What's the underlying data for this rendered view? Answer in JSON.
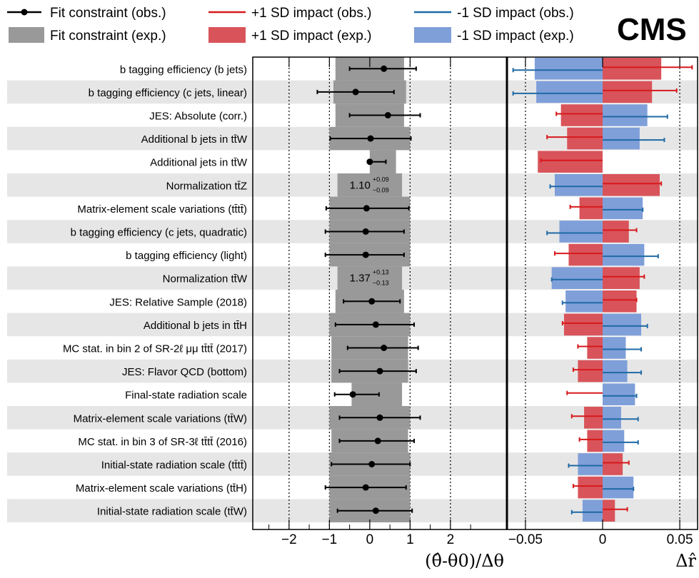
{
  "experiment_label": "CMS",
  "legend": {
    "fit_obs": "Fit constraint (obs.)",
    "fit_exp": "Fit constraint (exp.)",
    "plus_obs": "+1 SD impact (obs.)",
    "plus_exp": "+1 SD impact (exp.)",
    "minus_obs": "-1 SD impact (obs.)",
    "minus_exp": "-1 SD impact (exp.)"
  },
  "colors": {
    "fit_obs": "#000000",
    "fit_exp": "#999999",
    "plus_obs": "#d7191c",
    "plus_exp": "#d8545a",
    "minus_obs": "#1f6aa5",
    "minus_exp": "#7f9fd9",
    "band": "#e6e6e6"
  },
  "chart_data": [
    {
      "type": "scatter",
      "name": "pulls",
      "xlabel": "(θ̂-θ0)/Δθ",
      "xlim": [
        -2.9,
        3.4
      ],
      "xticks": [
        -2,
        -1,
        0,
        1,
        2
      ],
      "xtick_labels": [
        "−2",
        "−1",
        "0",
        "1",
        "2"
      ],
      "grid_x": [
        -2,
        -1,
        1,
        2
      ],
      "categories": [
        "b tagging efficiency (b jets)",
        "b tagging efficiency (c jets, linear)",
        "JES: Absolute (corr.)",
        "Additional b jets in tt̄W",
        "Additional jets in tt̄W",
        "Normalization tt̄Z",
        "Matrix-element scale variations (tt̄tt̄)",
        "b tagging efficiency (c jets, quadratic)",
        "b tagging efficiency (light)",
        "Normalization tt̄W",
        "JES: Relative Sample (2018)",
        "Additional b jets in tt̄H",
        "MC stat. in bin 2 of SR-2ℓ μμ tt̄tt̄ (2017)",
        "JES: Flavor QCD (bottom)",
        "Final-state radiation scale",
        "Matrix-element scale variations (tt̄W)",
        "MC stat. in bin 3 of SR-3ℓ tt̄tt̄ (2016)",
        "Initial-state radiation scale (tt̄tt̄)",
        "Matrix-element scale variations (tt̄H)",
        "Initial-state radiation scale (tt̄W)"
      ],
      "series": [
        {
          "name": "Fit constraint (obs.)",
          "values": [
            0.35,
            -0.35,
            0.45,
            0.02,
            0.0,
            null,
            -0.08,
            -0.1,
            -0.1,
            null,
            0.05,
            0.15,
            0.35,
            0.25,
            -0.42,
            0.25,
            0.2,
            0.05,
            -0.1,
            0.15
          ],
          "err_lo": [
            0.85,
            0.95,
            0.95,
            1.0,
            0.0,
            null,
            1.0,
            1.0,
            1.0,
            null,
            0.7,
            1.0,
            0.9,
            1.0,
            0.45,
            1.0,
            0.95,
            1.0,
            1.0,
            0.95
          ],
          "err_hi": [
            0.8,
            0.95,
            0.8,
            1.0,
            0.4,
            null,
            1.05,
            0.95,
            0.95,
            null,
            0.7,
            0.95,
            0.85,
            0.9,
            0.65,
            1.0,
            0.9,
            0.95,
            1.0,
            0.9
          ]
        },
        {
          "name": "Fit constraint (exp.)",
          "lo": [
            -0.85,
            -0.9,
            -0.85,
            -1.0,
            0.0,
            -0.8,
            -1.0,
            -1.0,
            -1.0,
            -0.8,
            -0.85,
            -1.0,
            -0.95,
            -0.95,
            -0.45,
            -1.0,
            -0.95,
            -1.0,
            -1.0,
            -1.0
          ],
          "hi": [
            0.85,
            0.9,
            0.85,
            1.0,
            0.65,
            0.8,
            1.0,
            1.0,
            1.0,
            0.8,
            0.85,
            1.0,
            0.95,
            0.95,
            0.8,
            1.0,
            0.95,
            1.0,
            1.0,
            1.0
          ]
        }
      ],
      "annotations": [
        {
          "row": 5,
          "value": "1.10",
          "up": "+0.09",
          "down": "−0.09"
        },
        {
          "row": 9,
          "value": "1.37",
          "up": "+0.13",
          "down": "−0.13"
        }
      ]
    },
    {
      "type": "bar",
      "name": "impacts",
      "xlabel": "Δr̂",
      "xlim": [
        -0.062,
        0.062
      ],
      "xticks": [
        -0.05,
        0,
        0.05
      ],
      "xtick_labels": [
        "−0.05",
        "0",
        "0.05"
      ],
      "grid_x": [
        -0.05,
        0.05
      ],
      "series": [
        {
          "name": "+1 SD impact (exp.)",
          "values": [
            0.038,
            0.032,
            -0.027,
            -0.023,
            -0.042,
            0.037,
            -0.015,
            0.017,
            -0.022,
            0.024,
            0.022,
            -0.025,
            -0.01,
            -0.016,
            0.0,
            -0.012,
            -0.01,
            0.013,
            -0.016,
            0.008
          ]
        },
        {
          "name": "-1 SD impact (exp.)",
          "values": [
            -0.044,
            -0.043,
            0.029,
            0.024,
            0.0,
            -0.031,
            0.026,
            -0.028,
            0.027,
            -0.033,
            -0.024,
            0.025,
            0.015,
            0.016,
            0.021,
            0.012,
            0.014,
            -0.016,
            0.02,
            -0.013
          ]
        },
        {
          "name": "+1 SD impact (obs.)",
          "values": [
            0.058,
            0.048,
            -0.03,
            -0.036,
            -0.04,
            0.038,
            -0.021,
            0.022,
            -0.031,
            0.027,
            0.022,
            -0.026,
            -0.016,
            -0.019,
            -0.023,
            -0.02,
            -0.015,
            0.017,
            -0.019,
            0.016
          ]
        },
        {
          "name": "-1 SD impact (obs.)",
          "values": [
            -0.058,
            -0.058,
            0.042,
            0.04,
            null,
            -0.034,
            0.026,
            -0.036,
            0.036,
            -0.033,
            -0.026,
            0.029,
            0.025,
            0.025,
            0.022,
            0.023,
            0.023,
            -0.022,
            0.02,
            -0.02
          ]
        }
      ]
    }
  ]
}
